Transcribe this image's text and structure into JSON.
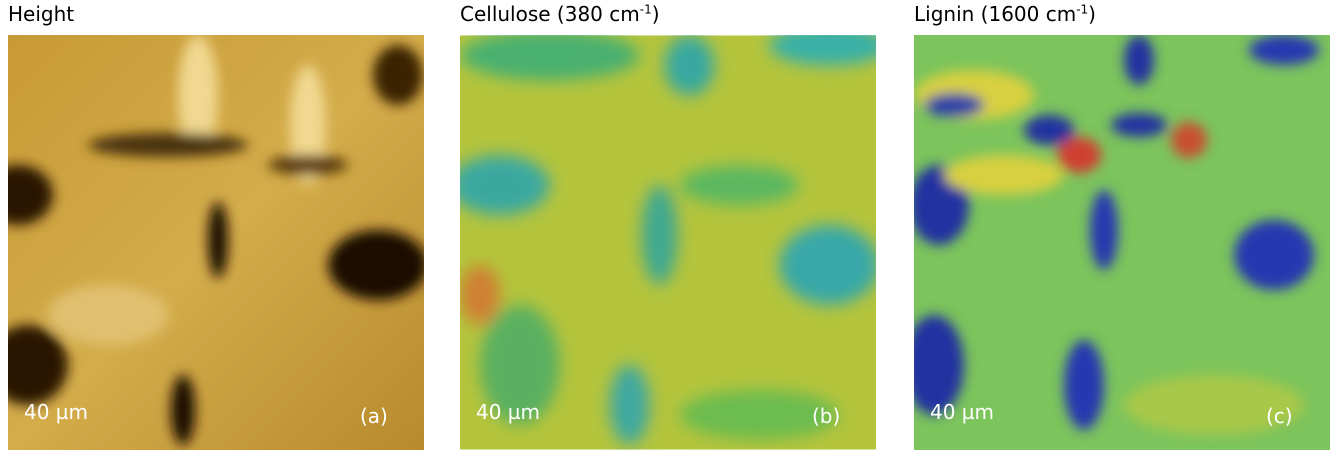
{
  "panels": [
    {
      "title": {
        "text": "Height"
      },
      "scale": "40 µm",
      "label": "(a)"
    },
    {
      "title": {
        "text": "Cellulose (380 cm",
        "sup": "-1",
        "after": ")"
      },
      "scale": "40 µm",
      "label": "(b)"
    },
    {
      "title": {
        "text": "Lignin (1600 cm",
        "sup": "-1",
        "after": ")"
      },
      "scale": "40 µm",
      "label": "(c)"
    }
  ]
}
